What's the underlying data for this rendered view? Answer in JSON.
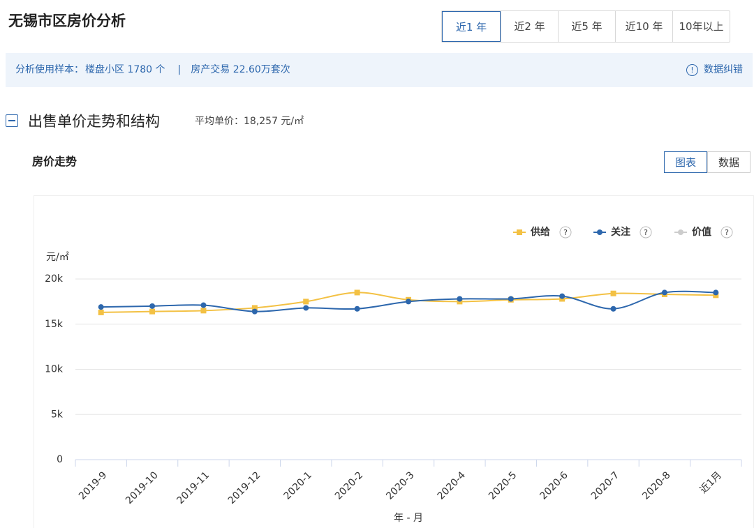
{
  "header": {
    "title": "无锡市区房价分析",
    "tabs": [
      "近1 年",
      "近2 年",
      "近5 年",
      "近10 年",
      "10年以上"
    ]
  },
  "sample": {
    "label": "分析使用样本：",
    "communities": "楼盘小区 1780 个",
    "separator": "|",
    "transactions": "房产交易 22.60万套次",
    "feedback": "数据纠错"
  },
  "section": {
    "title": "出售单价走势和结构",
    "avg_label": "平均单价：",
    "avg_value": "18,257 元/㎡"
  },
  "subsection": {
    "title": "房价走势",
    "views": [
      "图表",
      "数据"
    ]
  },
  "chart_data": {
    "type": "line",
    "y_unit": "元/㎡",
    "x_label": "年 - 月",
    "categories": [
      "2019-9",
      "2019-10",
      "2019-11",
      "2019-12",
      "2020-1",
      "2020-2",
      "2020-3",
      "2020-4",
      "2020-5",
      "2020-6",
      "2020-7",
      "2020-8",
      "近1月"
    ],
    "series": [
      {
        "name": "供给",
        "color": "#f3c144",
        "marker": "square",
        "values": [
          16300,
          16400,
          16500,
          16800,
          17500,
          18500,
          17700,
          17500,
          17700,
          17800,
          18400,
          18300,
          18200
        ]
      },
      {
        "name": "关注",
        "color": "#2d67ad",
        "marker": "circle",
        "values": [
          16900,
          17000,
          17100,
          16400,
          16800,
          16700,
          17500,
          17800,
          17800,
          18100,
          16700,
          18500,
          18500
        ]
      },
      {
        "name": "价值",
        "color": "#cccccc",
        "marker": "circle",
        "values": [
          null,
          null,
          null,
          null,
          null,
          null,
          null,
          null,
          null,
          null,
          null,
          null,
          null
        ]
      }
    ],
    "ylim": [
      0,
      20000
    ],
    "yticks": [
      0,
      {
        "value": 5000,
        "label": "5k"
      },
      {
        "value": 10000,
        "label": "10k"
      },
      {
        "value": 15000,
        "label": "15k"
      },
      {
        "value": 20000,
        "label": "20k"
      }
    ],
    "grid": true
  }
}
